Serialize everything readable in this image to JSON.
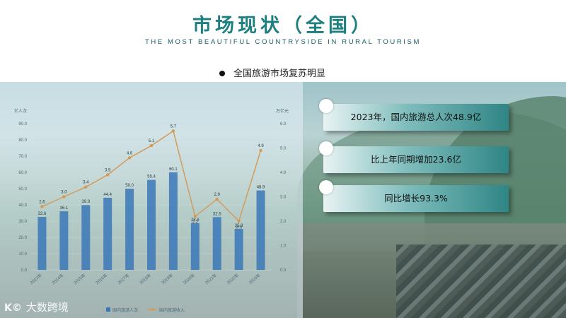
{
  "header": {
    "title": "市场现状（全国）",
    "subtitle": "THE MOST BEAUTIFUL COUNTRYSIDE IN RURAL TOURISM",
    "bullet": "全国旅游市场复苏明显"
  },
  "cards": [
    {
      "text": "2023年，国内旅游总人次48.9亿"
    },
    {
      "text": "比上年同期增加23.6亿"
    },
    {
      "text": "同比增长93.3%"
    }
  ],
  "watermark": {
    "logo": "K©",
    "text": "大数跨境"
  },
  "colors": {
    "title": "#1e7f80",
    "bar": "#3a78b8",
    "line": "#d39b5a",
    "card_dark": "#2f8585"
  },
  "chart_data": {
    "type": "bar",
    "left_axis_unit": "亿人次",
    "right_axis_unit": "万亿元",
    "categories": [
      "2013年",
      "2014年",
      "2015年",
      "2016年",
      "2017年",
      "2018年",
      "2019年",
      "2020年",
      "2021年",
      "2022年",
      "2023年"
    ],
    "y_ticks": [
      "0.0",
      "10.0",
      "20.0",
      "30.0",
      "40.0",
      "50.0",
      "60.0",
      "70.0",
      "80.0",
      "90.0"
    ],
    "y2_ticks": [
      "0.0",
      "1.0",
      "2.0",
      "3.0",
      "4.0",
      "5.0",
      "6.0"
    ],
    "ylim": [
      0,
      90
    ],
    "y2lim": [
      0,
      6
    ],
    "series": [
      {
        "name": "国内旅游人次",
        "type": "bar",
        "axis": "left",
        "values": [
          32.6,
          36.1,
          39.9,
          44.4,
          50.0,
          55.4,
          60.1,
          28.8,
          32.5,
          25.3,
          48.9
        ],
        "labels": [
          "32.6",
          "36.1",
          "39.9",
          "44.4",
          "50.0",
          "55.4",
          "60.1",
          "28.8",
          "32.5",
          "25.3",
          "48.9"
        ]
      },
      {
        "name": "国内旅游收入",
        "type": "line",
        "axis": "right",
        "values": [
          2.6,
          3.0,
          3.4,
          3.9,
          4.6,
          5.1,
          5.7,
          2.2,
          2.9,
          2.0,
          4.9
        ],
        "labels": [
          "2.6",
          "3.0",
          "3.4",
          "3.9",
          "4.6",
          "5.1",
          "5.7",
          "2.2",
          "2.9",
          "2.0",
          "4.9"
        ]
      }
    ],
    "legend": [
      "国内旅游人次",
      "国内旅游收入"
    ],
    "legend_position": "bottom"
  }
}
